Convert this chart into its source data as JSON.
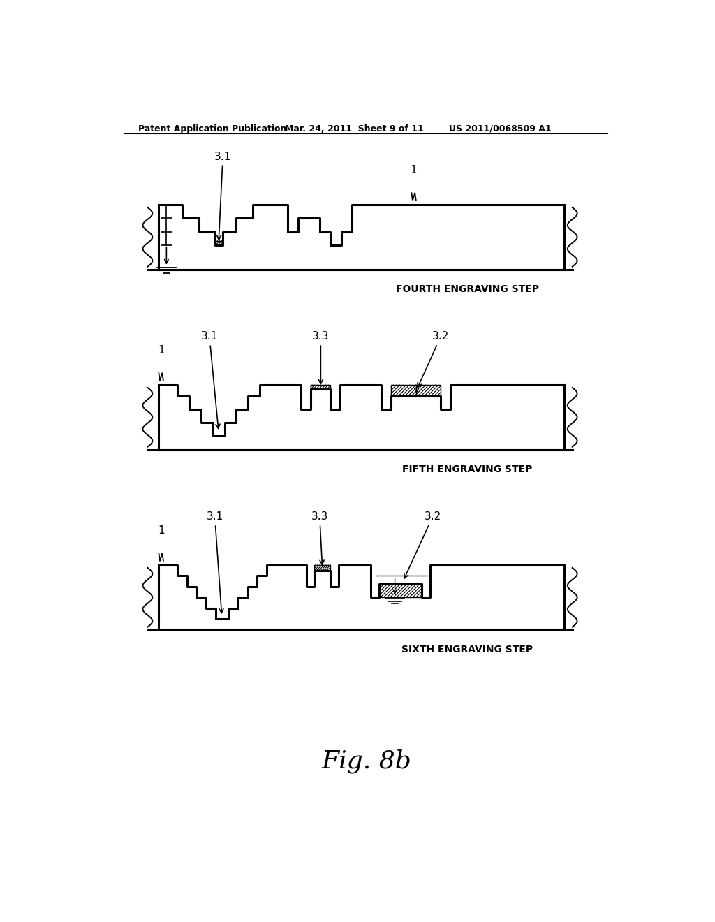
{
  "header_left": "Patent Application Publication",
  "header_center": "Mar. 24, 2011  Sheet 9 of 11",
  "header_right": "US 2011/0068509 A1",
  "figure_label": "Fig. 8b",
  "diagram1_label": "FOURTH ENGRAVING STEP",
  "diagram2_label": "FIFTH ENGRAVING STEP",
  "diagram3_label": "SIXTH ENGRAVING STEP",
  "bg_color": "#ffffff",
  "line_color": "#000000"
}
